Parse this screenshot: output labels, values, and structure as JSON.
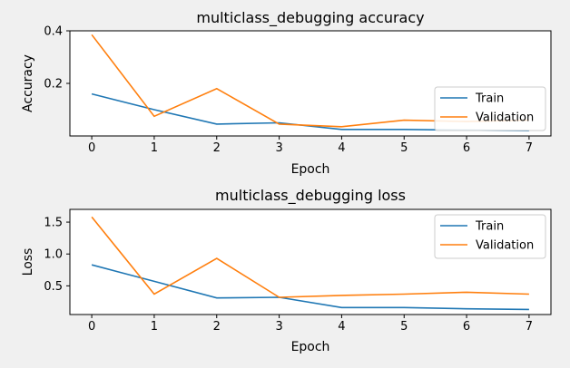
{
  "colors": {
    "train": "#1f77b4",
    "validation": "#ff7f0e",
    "background": "#f0f0f0",
    "plot_background": "#ffffff"
  },
  "chart_data": [
    {
      "type": "line",
      "title": "multiclass_debugging accuracy",
      "xlabel": "Epoch",
      "ylabel": "Accuracy",
      "x": [
        0,
        1,
        2,
        3,
        4,
        5,
        6,
        7
      ],
      "xticks": [
        "0",
        "1",
        "2",
        "3",
        "4",
        "5",
        "6",
        "7"
      ],
      "yticks": [
        0.2,
        0.4
      ],
      "ytick_labels": [
        "0.2",
        "0.4"
      ],
      "xlim": [
        -0.35,
        7.35
      ],
      "ylim": [
        0.0,
        0.4
      ],
      "legend": "lower-right",
      "grid": false,
      "series": [
        {
          "name": "Train",
          "values": [
            0.16,
            0.1,
            0.045,
            0.05,
            0.025,
            0.025,
            0.022,
            0.02
          ]
        },
        {
          "name": "Validation",
          "values": [
            0.385,
            0.075,
            0.18,
            0.045,
            0.035,
            0.06,
            0.055,
            0.06
          ]
        }
      ]
    },
    {
      "type": "line",
      "title": "multiclass_debugging loss",
      "xlabel": "Epoch",
      "ylabel": "Loss",
      "x": [
        0,
        1,
        2,
        3,
        4,
        5,
        6,
        7
      ],
      "xticks": [
        "0",
        "1",
        "2",
        "3",
        "4",
        "5",
        "6",
        "7"
      ],
      "yticks": [
        0.5,
        1.0,
        1.5
      ],
      "ytick_labels": [
        "0.5",
        "1.0",
        "1.5"
      ],
      "xlim": [
        -0.35,
        7.35
      ],
      "ylim": [
        0.05,
        1.7
      ],
      "legend": "upper-right",
      "grid": false,
      "series": [
        {
          "name": "Train",
          "values": [
            0.83,
            0.57,
            0.31,
            0.32,
            0.16,
            0.16,
            0.14,
            0.13
          ]
        },
        {
          "name": "Validation",
          "values": [
            1.58,
            0.37,
            0.93,
            0.32,
            0.35,
            0.37,
            0.4,
            0.37
          ]
        }
      ]
    }
  ]
}
